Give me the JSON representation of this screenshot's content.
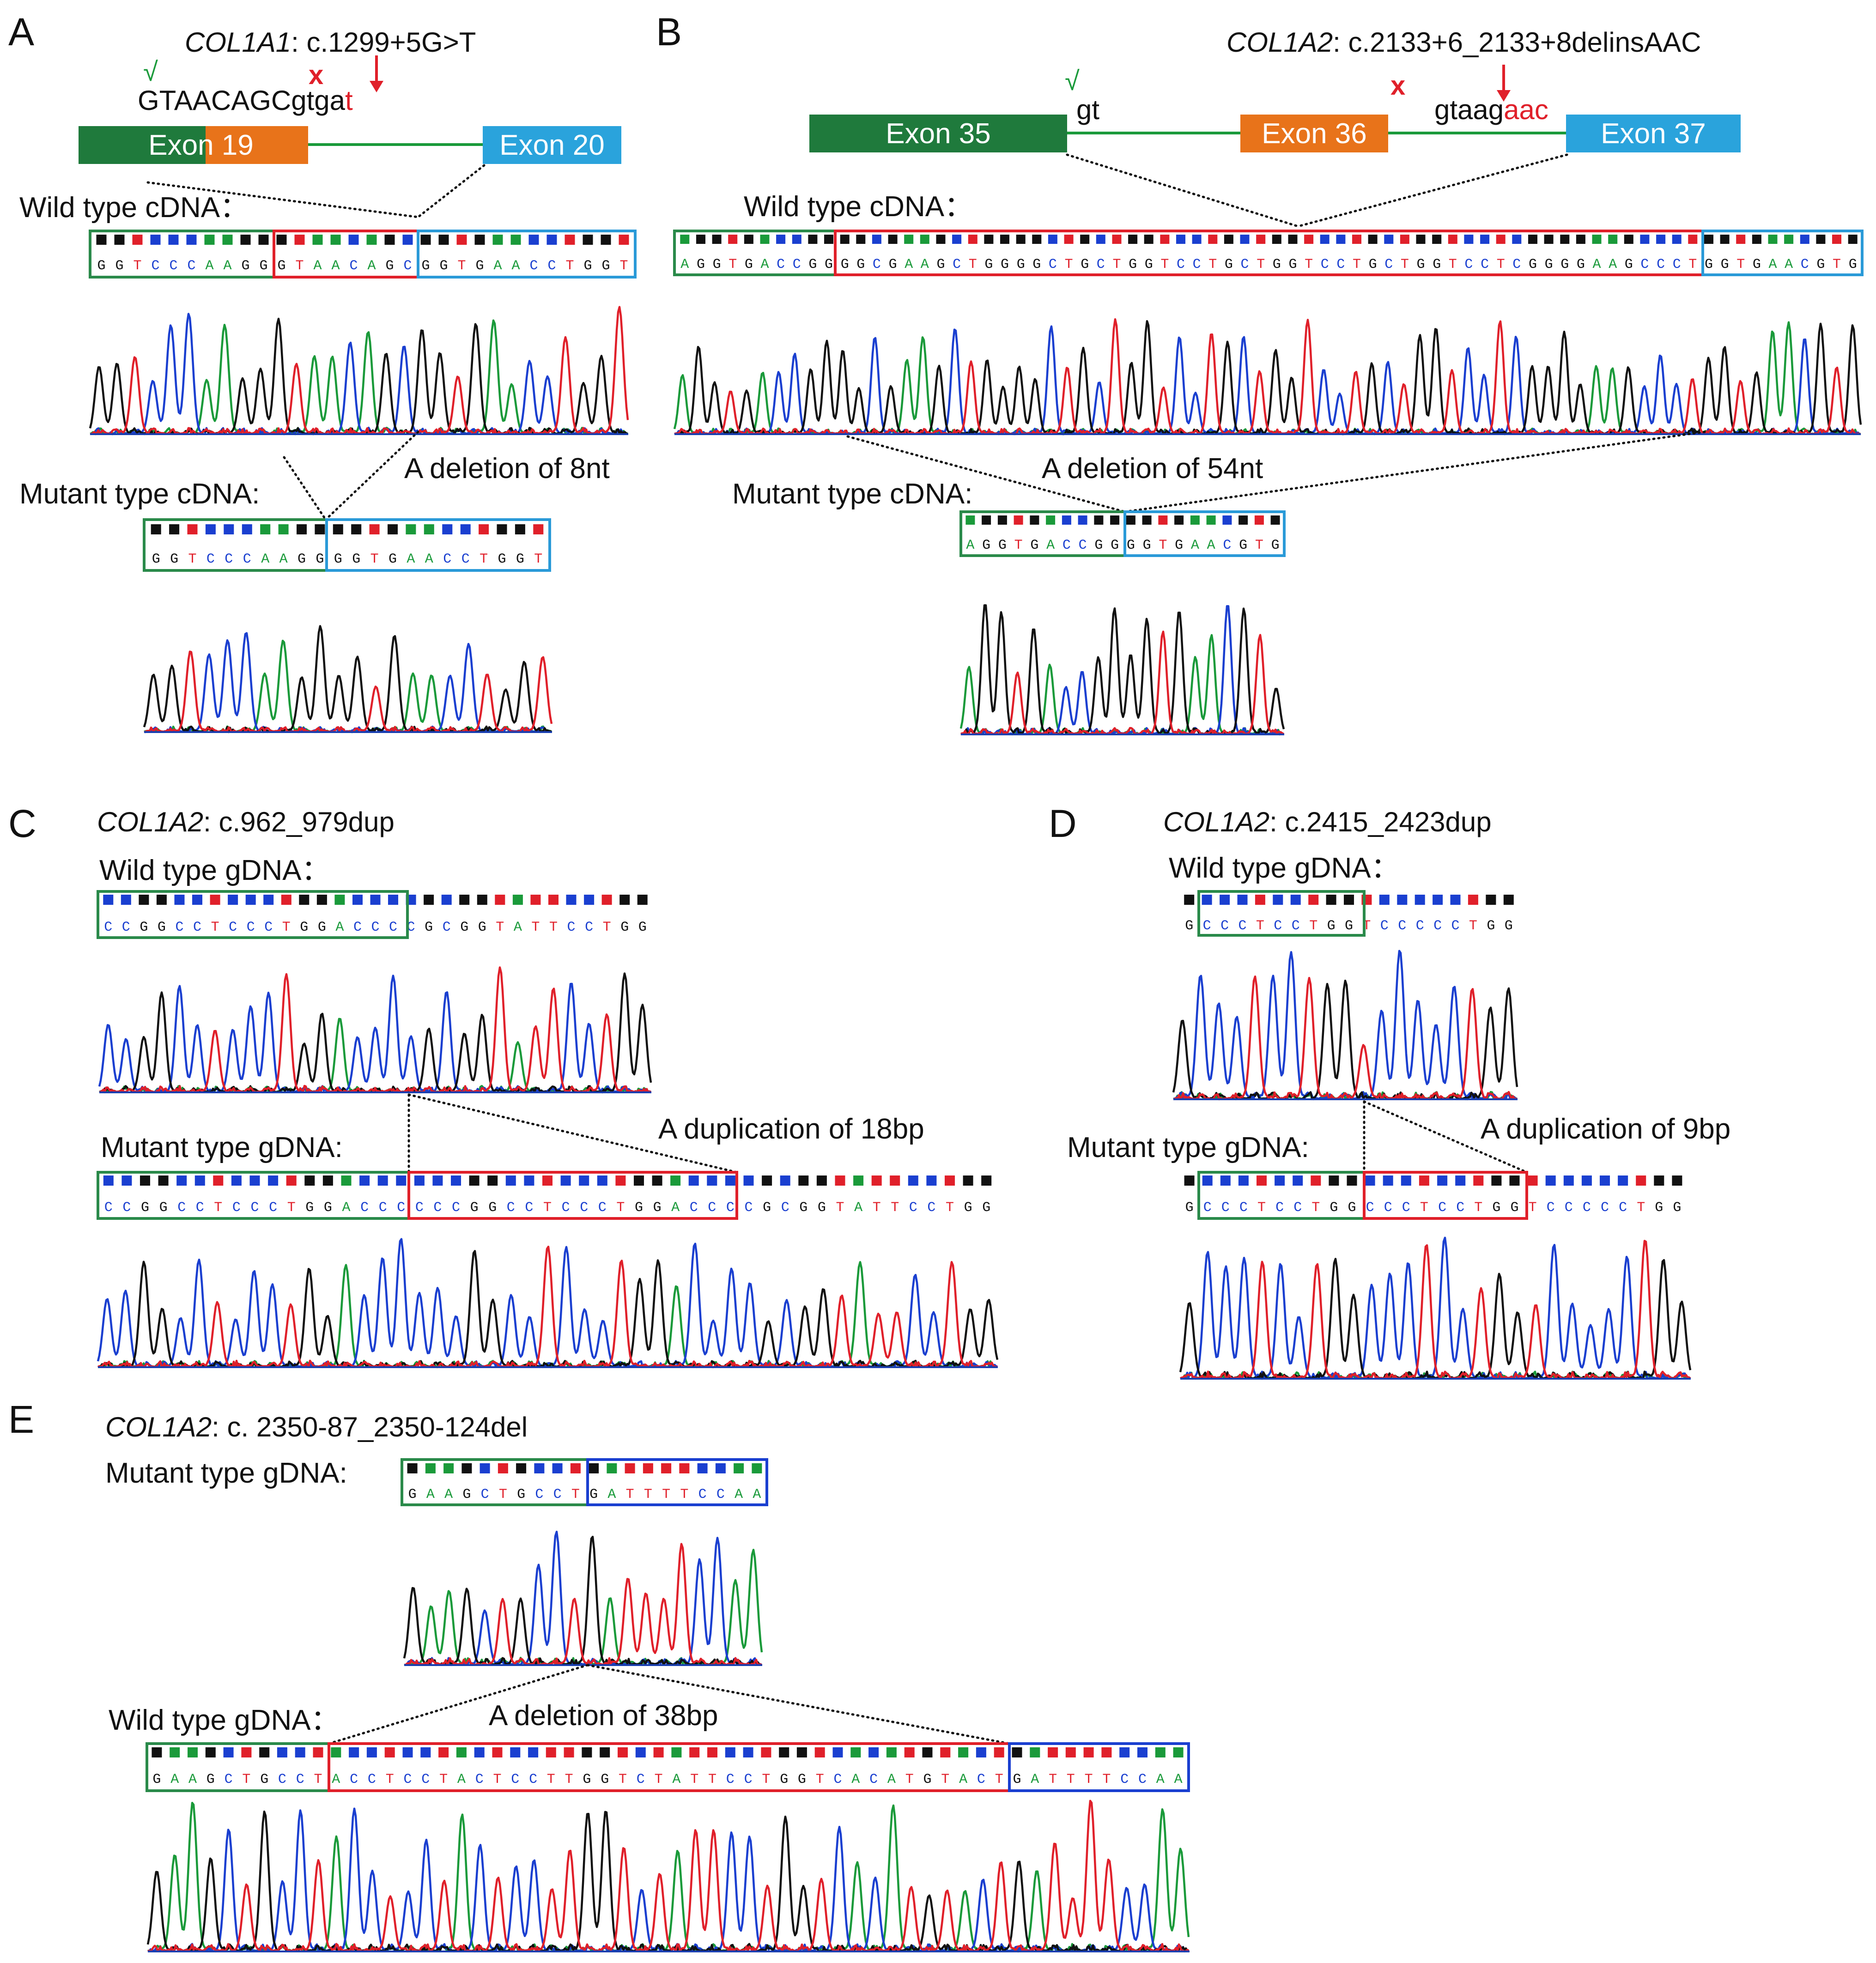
{
  "panels": {
    "A": {
      "letter": "A",
      "gene": "COL1A1",
      "variant": ": c.1299+5G>T",
      "check_mark": "√",
      "cross_mark": "x",
      "seq_upper": "GTAACAGC",
      "seq_lower_black": "gtga",
      "seq_lower_red": "t",
      "exon19": "Exon 19",
      "exon20": "Exon 20",
      "wt_label": "Wild type cDNA：",
      "mut_label": "Mutant type cDNA:",
      "deletion": "A deletion of 8nt",
      "wt_seq": "GGTCCCAAGGGTAACAGCGGTGAACCTGGT",
      "mut_seq": "GGTCCCAAGGGGTGAACCTGGT"
    },
    "B": {
      "letter": "B",
      "gene": "COL1A2",
      "variant": ": c.2133+6_2133+8delinsAAC",
      "check_mark": "√",
      "cross_mark": "x",
      "gt": "gt",
      "gtaag": "gtaag",
      "aac": "aac",
      "exon35": "Exon 35",
      "exon36": "Exon 36",
      "exon37": "Exon 37",
      "wt_label": "Wild type cDNA：",
      "mut_label": "Mutant type cDNA:",
      "deletion": "A deletion of 54nt",
      "wt_seq": "AGGTGACCGGGGCGAAGCTGGGGCTGCTGGTCCTGCTGGTCCTGCTGGTCCTCGGGGAAGCCCTGGTGAACGTG",
      "mut_seq": "AGGTGACCGGGGTGAACGTG"
    },
    "C": {
      "letter": "C",
      "gene": "COL1A2",
      "variant": ": c.962_979dup",
      "wt_label": "Wild type gDNA：",
      "mut_label": "Mutant type gDNA:",
      "duplication": "A duplication of 18bp",
      "wt_seq": "CCGGCCTCCCTGGACCCCGCGGTATTCCTGG",
      "mut_seq": "CCGGCCTCCCTGGACCCCCCGGCCTCCCTGGACCCCGCGGTATTCCTGG"
    },
    "D": {
      "letter": "D",
      "gene": "COL1A2",
      "variant": ": c.2415_2423dup",
      "wt_label": "Wild type gDNA：",
      "mut_label": "Mutant type gDNA:",
      "duplication": "A duplication of 9bp",
      "wt_seq": "GCCCTCCTGGTCCCCCTGG",
      "mut_seq": "GCCCTCCTGGCCCTCCTGGTCCCCCTGG"
    },
    "E": {
      "letter": "E",
      "gene": "COL1A2",
      "variant": ": c. 2350-87_2350-124del",
      "mut_label": "Mutant type gDNA:",
      "wt_label": "Wild type gDNA：",
      "deletion": "A deletion of 38bp",
      "mut_seq": "GAAGCTGCCTGATTTTCCAA",
      "wt_seq": "GAAGCTGCCTACCTCCTACTCCTTGGTCTATTCCTGGTCACATGTACTGATTTTCCAA"
    }
  },
  "colors": {
    "A": "#1a9a3a",
    "C": "#1a3fd0",
    "G": "#111111",
    "T": "#e0202a",
    "exon_dark_green": "#1f7a3c",
    "exon_orange": "#e8731a",
    "exon_blue": "#2aa3dc",
    "marker_red": "#e0202a",
    "check_green": "#1a9a3a"
  }
}
